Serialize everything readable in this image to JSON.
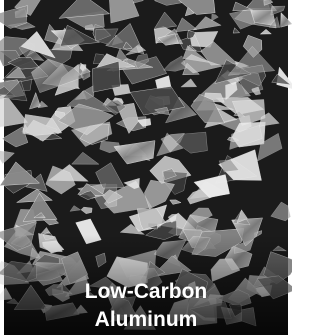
{
  "tile": {
    "caption_lines": [
      "Low-Carbon",
      "Aluminum"
    ]
  }
}
